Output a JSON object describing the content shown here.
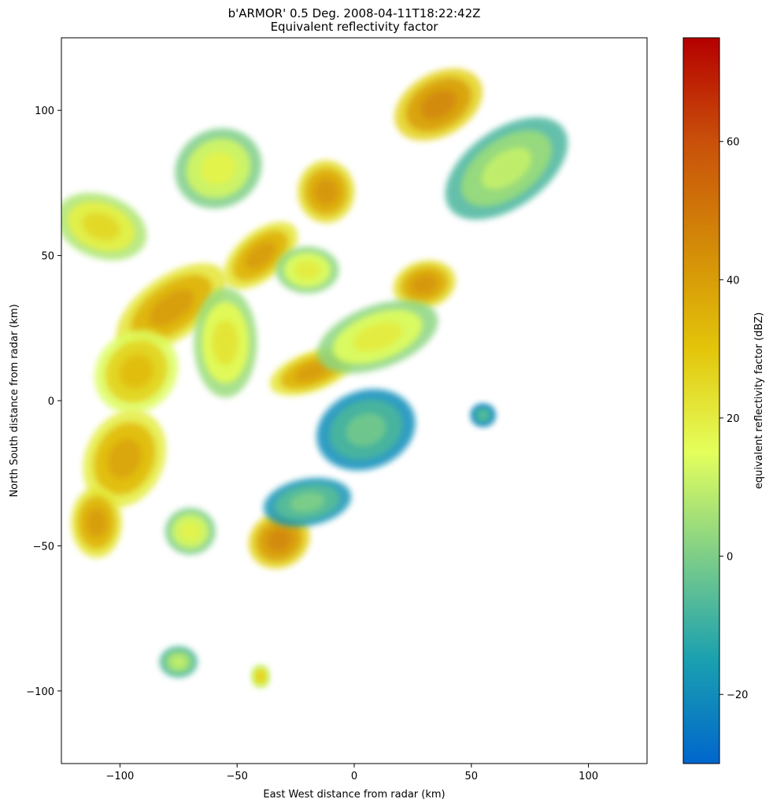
{
  "chart_data": {
    "type": "heatmap",
    "title": "b'ARMOR' 0.5 Deg. 2008-04-11T18:22:42Z",
    "subtitle": "Equivalent reflectivity factor",
    "xlabel": "East West distance from radar (km)",
    "ylabel": "North South distance from radar (km)",
    "xlim": [
      -125,
      125
    ],
    "ylim": [
      -125,
      125
    ],
    "xticks": [
      -100,
      -50,
      0,
      50,
      100
    ],
    "yticks": [
      -100,
      -50,
      0,
      50,
      100
    ],
    "xtick_labels": [
      "−100",
      "−50",
      "0",
      "50",
      "100"
    ],
    "ytick_labels": [
      "−100",
      "−50",
      "0",
      "50",
      "100"
    ],
    "colorbar": {
      "label": "equivalent reflectivity factor (dBZ)",
      "range": [
        -30,
        75
      ],
      "ticks": [
        -20,
        0,
        20,
        40,
        60
      ],
      "tick_labels": [
        "−20",
        "0",
        "20",
        "40",
        "60"
      ],
      "colormap": [
        "#0066cc",
        "#1aa0b0",
        "#7ece88",
        "#e4ff5c",
        "#e3c50a",
        "#d38a08",
        "#c9500a",
        "#b50000"
      ]
    },
    "grid": false,
    "echo_regions": [
      {
        "x": -78,
        "y": 32,
        "rx": 20,
        "ry": 8,
        "angle": 35,
        "dbz": 40
      },
      {
        "x": -93,
        "y": 10,
        "rx": 14,
        "ry": 10,
        "angle": 45,
        "dbz": 32
      },
      {
        "x": -98,
        "y": -20,
        "rx": 16,
        "ry": 10,
        "angle": 65,
        "dbz": 38
      },
      {
        "x": -110,
        "y": -42,
        "rx": 8,
        "ry": 9,
        "angle": 0,
        "dbz": 40
      },
      {
        "x": -40,
        "y": 50,
        "rx": 14,
        "ry": 6,
        "angle": 40,
        "dbz": 40
      },
      {
        "x": -12,
        "y": 72,
        "rx": 9,
        "ry": 8,
        "angle": 0,
        "dbz": 42
      },
      {
        "x": 36,
        "y": 102,
        "rx": 15,
        "ry": 8,
        "angle": 30,
        "dbz": 45
      },
      {
        "x": 30,
        "y": 40,
        "rx": 10,
        "ry": 6,
        "angle": 15,
        "dbz": 42
      },
      {
        "x": -18,
        "y": 10,
        "rx": 14,
        "ry": 5,
        "angle": 20,
        "dbz": 40
      },
      {
        "x": -32,
        "y": -48,
        "rx": 10,
        "ry": 7,
        "angle": 30,
        "dbz": 45
      },
      {
        "x": -108,
        "y": 60,
        "rx": 10,
        "ry": 12,
        "angle": 70,
        "dbz": 25
      },
      {
        "x": -58,
        "y": 80,
        "rx": 14,
        "ry": 10,
        "angle": 25,
        "dbz": 18
      },
      {
        "x": 65,
        "y": 80,
        "rx": 22,
        "ry": 10,
        "angle": 35,
        "dbz": 10
      },
      {
        "x": 10,
        "y": 22,
        "rx": 20,
        "ry": 8,
        "angle": 20,
        "dbz": 20
      },
      {
        "x": 5,
        "y": -10,
        "rx": 16,
        "ry": 10,
        "angle": 20,
        "dbz": -2
      },
      {
        "x": -20,
        "y": -35,
        "rx": 14,
        "ry": 6,
        "angle": 10,
        "dbz": 0
      },
      {
        "x": -70,
        "y": -45,
        "rx": 8,
        "ry": 6,
        "angle": 0,
        "dbz": 18
      },
      {
        "x": -55,
        "y": 20,
        "rx": 10,
        "ry": 14,
        "angle": 0,
        "dbz": 22
      },
      {
        "x": -20,
        "y": 45,
        "rx": 10,
        "ry": 6,
        "angle": 0,
        "dbz": 20
      },
      {
        "x": -75,
        "y": -90,
        "rx": 6,
        "ry": 4,
        "angle": 0,
        "dbz": 10
      },
      {
        "x": -40,
        "y": -95,
        "rx": 3,
        "ry": 3,
        "angle": 0,
        "dbz": 28
      },
      {
        "x": 55,
        "y": -5,
        "rx": 4,
        "ry": 3,
        "angle": 0,
        "dbz": -5
      }
    ]
  }
}
